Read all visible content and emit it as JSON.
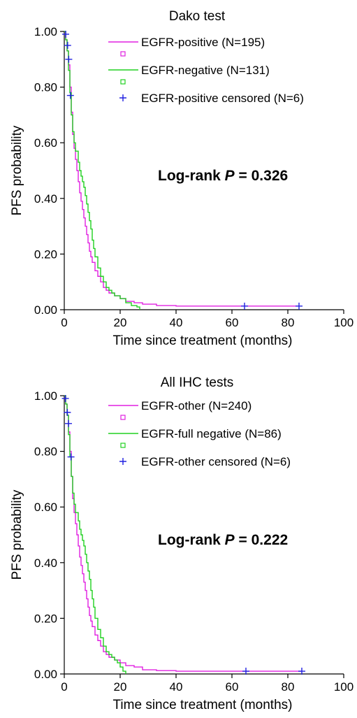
{
  "chart_data": [
    {
      "type": "line",
      "title": "Dako test",
      "xlabel": "Time since treatment (months)",
      "ylabel": "PFS probability",
      "xlim": [
        0,
        100
      ],
      "ylim": [
        0,
        1
      ],
      "x_ticks": [
        "0",
        "20",
        "40",
        "60",
        "80",
        "100"
      ],
      "y_ticks": [
        "0.00",
        "0.20",
        "0.40",
        "0.60",
        "0.80",
        "1.00"
      ],
      "legend_position": "top-right",
      "legend": [
        {
          "label": "EGFR-positive (N=195)",
          "color": "#e020e0",
          "kind": "line"
        },
        {
          "label": "EGFR-negative (N=131)",
          "color": "#20d020",
          "kind": "line"
        },
        {
          "label": "EGFR-positive censored (N=6)",
          "color": "#2020e0",
          "kind": "plus"
        }
      ],
      "annotation": {
        "prefix": "Log-rank ",
        "italic": "P",
        "suffix": " = 0.326"
      },
      "series": [
        {
          "name": "EGFR-positive (N=195)",
          "color": "#e020e0",
          "points": [
            [
              0,
              1.0
            ],
            [
              0.5,
              0.97
            ],
            [
              1,
              0.93
            ],
            [
              1.5,
              0.88
            ],
            [
              2,
              0.8
            ],
            [
              2.5,
              0.71
            ],
            [
              3,
              0.63
            ],
            [
              3.5,
              0.58
            ],
            [
              4,
              0.54
            ],
            [
              4.5,
              0.5
            ],
            [
              5,
              0.46
            ],
            [
              5.5,
              0.42
            ],
            [
              6,
              0.39
            ],
            [
              6.5,
              0.36
            ],
            [
              7,
              0.33
            ],
            [
              7.5,
              0.3
            ],
            [
              8,
              0.27
            ],
            [
              8.5,
              0.24
            ],
            [
              9,
              0.21
            ],
            [
              9.5,
              0.19
            ],
            [
              10,
              0.17
            ],
            [
              11,
              0.14
            ],
            [
              12,
              0.12
            ],
            [
              13,
              0.1
            ],
            [
              14,
              0.08
            ],
            [
              15,
              0.07
            ],
            [
              16,
              0.06
            ],
            [
              18,
              0.05
            ],
            [
              20,
              0.04
            ],
            [
              22,
              0.03
            ],
            [
              25,
              0.025
            ],
            [
              28,
              0.02
            ],
            [
              33,
              0.015
            ],
            [
              40,
              0.013
            ],
            [
              60,
              0.013
            ],
            [
              84,
              0.013
            ]
          ]
        },
        {
          "name": "EGFR-negative (N=131)",
          "color": "#20d020",
          "points": [
            [
              0,
              1.0
            ],
            [
              0.5,
              0.97
            ],
            [
              1,
              0.93
            ],
            [
              1.5,
              0.86
            ],
            [
              2,
              0.78
            ],
            [
              2.5,
              0.7
            ],
            [
              3,
              0.64
            ],
            [
              3.5,
              0.6
            ],
            [
              4,
              0.57
            ],
            [
              5,
              0.53
            ],
            [
              5.5,
              0.5
            ],
            [
              6,
              0.48
            ],
            [
              6.5,
              0.46
            ],
            [
              7,
              0.44
            ],
            [
              7.5,
              0.41
            ],
            [
              8,
              0.38
            ],
            [
              8.5,
              0.35
            ],
            [
              9,
              0.32
            ],
            [
              9.5,
              0.29
            ],
            [
              10,
              0.25
            ],
            [
              10.5,
              0.22
            ],
            [
              11,
              0.19
            ],
            [
              12,
              0.15
            ],
            [
              13,
              0.12
            ],
            [
              14,
              0.1
            ],
            [
              15,
              0.08
            ],
            [
              16,
              0.07
            ],
            [
              17,
              0.06
            ],
            [
              18,
              0.05
            ],
            [
              20,
              0.04
            ],
            [
              22,
              0.025
            ],
            [
              24,
              0.015
            ],
            [
              26,
              0.01
            ],
            [
              27,
              0.0
            ]
          ]
        }
      ],
      "censored": {
        "name": "EGFR-positive censored (N=6)",
        "color": "#2020e0",
        "points": [
          [
            0.5,
            0.99
          ],
          [
            1.2,
            0.95
          ],
          [
            1.6,
            0.9
          ],
          [
            2.2,
            0.77
          ],
          [
            64.5,
            0.013
          ],
          [
            84,
            0.013
          ]
        ]
      }
    },
    {
      "type": "line",
      "title": "All IHC tests",
      "xlabel": "Time since treatment (months)",
      "ylabel": "PFS probability",
      "xlim": [
        0,
        100
      ],
      "ylim": [
        0,
        1
      ],
      "x_ticks": [
        "0",
        "20",
        "40",
        "60",
        "80",
        "100"
      ],
      "y_ticks": [
        "0.00",
        "0.20",
        "0.40",
        "0.60",
        "0.80",
        "1.00"
      ],
      "legend_position": "top-right",
      "legend": [
        {
          "label": "EGFR-other (N=240)",
          "color": "#e020e0",
          "kind": "line"
        },
        {
          "label": "EGFR-full negative (N=86)",
          "color": "#20d020",
          "kind": "line"
        },
        {
          "label": "EGFR-other censored (N=6)",
          "color": "#2020e0",
          "kind": "plus"
        }
      ],
      "annotation": {
        "prefix": "Log-rank ",
        "italic": "P",
        "suffix": " = 0.222"
      },
      "series": [
        {
          "name": "EGFR-other (N=240)",
          "color": "#e020e0",
          "points": [
            [
              0,
              1.0
            ],
            [
              0.5,
              0.97
            ],
            [
              1,
              0.93
            ],
            [
              1.5,
              0.87
            ],
            [
              2,
              0.8
            ],
            [
              2.5,
              0.71
            ],
            [
              3,
              0.63
            ],
            [
              3.5,
              0.58
            ],
            [
              4,
              0.54
            ],
            [
              4.5,
              0.5
            ],
            [
              5,
              0.46
            ],
            [
              5.5,
              0.42
            ],
            [
              6,
              0.39
            ],
            [
              6.5,
              0.36
            ],
            [
              7,
              0.33
            ],
            [
              7.5,
              0.3
            ],
            [
              8,
              0.27
            ],
            [
              8.5,
              0.24
            ],
            [
              9,
              0.21
            ],
            [
              9.5,
              0.19
            ],
            [
              10,
              0.17
            ],
            [
              11,
              0.14
            ],
            [
              12,
              0.12
            ],
            [
              13,
              0.1
            ],
            [
              14,
              0.08
            ],
            [
              15,
              0.07
            ],
            [
              16,
              0.06
            ],
            [
              18,
              0.05
            ],
            [
              20,
              0.04
            ],
            [
              22,
              0.03
            ],
            [
              25,
              0.025
            ],
            [
              28,
              0.015
            ],
            [
              33,
              0.012
            ],
            [
              40,
              0.01
            ],
            [
              60,
              0.01
            ],
            [
              85,
              0.01
            ]
          ]
        },
        {
          "name": "EGFR-full negative (N=86)",
          "color": "#20d020",
          "points": [
            [
              0,
              1.0
            ],
            [
              0.5,
              0.97
            ],
            [
              1,
              0.93
            ],
            [
              1.5,
              0.86
            ],
            [
              2,
              0.78
            ],
            [
              2.5,
              0.71
            ],
            [
              3,
              0.65
            ],
            [
              3.5,
              0.61
            ],
            [
              4,
              0.58
            ],
            [
              5,
              0.55
            ],
            [
              5.5,
              0.52
            ],
            [
              6,
              0.5
            ],
            [
              6.5,
              0.48
            ],
            [
              7,
              0.46
            ],
            [
              7.5,
              0.43
            ],
            [
              8,
              0.4
            ],
            [
              8.5,
              0.37
            ],
            [
              9,
              0.34
            ],
            [
              9.5,
              0.3
            ],
            [
              10,
              0.27
            ],
            [
              10.5,
              0.24
            ],
            [
              11,
              0.2
            ],
            [
              12,
              0.16
            ],
            [
              13,
              0.13
            ],
            [
              14,
              0.1
            ],
            [
              15,
              0.08
            ],
            [
              16,
              0.07
            ],
            [
              17,
              0.06
            ],
            [
              18,
              0.05
            ],
            [
              19,
              0.04
            ],
            [
              20,
              0.025
            ],
            [
              21,
              0.01
            ],
            [
              22,
              0.0
            ]
          ]
        }
      ],
      "censored": {
        "name": "EGFR-other censored (N=6)",
        "color": "#2020e0",
        "points": [
          [
            0.4,
            0.99
          ],
          [
            1.1,
            0.94
          ],
          [
            1.5,
            0.9
          ],
          [
            2.4,
            0.78
          ],
          [
            65,
            0.01
          ],
          [
            85,
            0.01
          ]
        ]
      }
    }
  ]
}
